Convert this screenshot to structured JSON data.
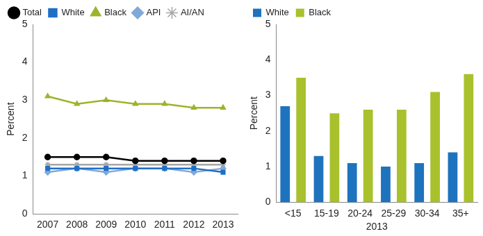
{
  "chart_data": [
    {
      "type": "line",
      "categories": [
        "2007",
        "2008",
        "2009",
        "2010",
        "2011",
        "2012",
        "2013"
      ],
      "y_label": "Percent",
      "ylim": [
        0,
        5
      ],
      "yticks": [
        0,
        1,
        2,
        3,
        4,
        5
      ],
      "grid": false,
      "legend": "top-left",
      "series": [
        {
          "name": "Total",
          "color": "#000000",
          "marker": "circle",
          "values": [
            1.5,
            1.5,
            1.5,
            1.4,
            1.4,
            1.4,
            1.4
          ]
        },
        {
          "name": "White",
          "color": "#1f6fc6",
          "marker": "rect",
          "values": [
            1.2,
            1.2,
            1.2,
            1.2,
            1.2,
            1.2,
            1.1
          ]
        },
        {
          "name": "Black",
          "color": "#9cb42a",
          "marker": "triangle",
          "values": [
            3.1,
            2.9,
            3.0,
            2.9,
            2.9,
            2.8,
            2.8
          ]
        },
        {
          "name": "API",
          "color": "#7fa9d8",
          "marker": "rectRot",
          "values": [
            1.1,
            1.2,
            1.1,
            1.2,
            1.2,
            1.1,
            1.2
          ]
        },
        {
          "name": "AI/AN",
          "color": "#a6a6a6",
          "marker": "star",
          "values": [
            1.3,
            1.3,
            1.3,
            1.3,
            1.3,
            1.3,
            1.3
          ]
        }
      ]
    },
    {
      "type": "bar",
      "categories": [
        "<15",
        "15-19",
        "20-24",
        "25-29",
        "30-34",
        "35+"
      ],
      "x_label": "2013",
      "y_label": "Percent",
      "ylim": [
        0,
        5
      ],
      "yticks": [
        0,
        1,
        2,
        3,
        4,
        5
      ],
      "grid": false,
      "legend": "top-left",
      "series": [
        {
          "name": "White",
          "color": "#1e73be",
          "values": [
            2.7,
            1.3,
            1.1,
            1.0,
            1.1,
            1.4
          ]
        },
        {
          "name": "Black",
          "color": "#a8c12c",
          "values": [
            3.5,
            2.5,
            2.6,
            2.6,
            3.1,
            3.6
          ]
        }
      ]
    }
  ]
}
